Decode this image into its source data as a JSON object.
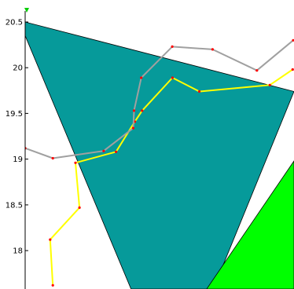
{
  "chart_data": {
    "type": "line",
    "title": "",
    "xlabel": "",
    "ylabel": "",
    "ylim": [
      17.58,
      20.62
    ],
    "xlim": [
      0,
      10
    ],
    "y_ticks": [
      {
        "value": 18,
        "label": "18"
      },
      {
        "value": 18.5,
        "label": "18.5"
      },
      {
        "value": 19,
        "label": "19"
      },
      {
        "value": 19.5,
        "label": "19.5"
      },
      {
        "value": 20,
        "label": "20"
      },
      {
        "value": 20.5,
        "label": "20.5"
      }
    ],
    "grid": false,
    "legend": "none",
    "areas": [
      {
        "name": "teal-region",
        "color": "#069a9a",
        "points": [
          [
            0,
            20.5
          ],
          [
            0,
            20.35
          ],
          [
            3.94,
            17.58
          ],
          [
            7.0,
            17.58
          ],
          [
            10,
            19.74
          ]
        ]
      },
      {
        "name": "green-region",
        "color": "#00ff00",
        "points": [
          [
            6.75,
            17.58
          ],
          [
            10,
            17.58
          ],
          [
            10,
            18.98
          ]
        ]
      }
    ],
    "series": [
      {
        "color": "#ffff00",
        "marker_color": "#ff0000",
        "points": [
          [
            1.03,
            17.62
          ],
          [
            0.93,
            18.12
          ],
          [
            2.02,
            18.47
          ],
          [
            1.87,
            18.96
          ],
          [
            3.38,
            19.08
          ],
          [
            4.08,
            19.41
          ],
          [
            4.35,
            19.53
          ],
          [
            5.48,
            19.89
          ],
          [
            6.48,
            19.74
          ],
          [
            9.1,
            19.81
          ],
          [
            9.95,
            19.98
          ]
        ]
      },
      {
        "color": "#a0a0a0",
        "marker_color": "#ff0000",
        "points": [
          [
            0,
            19.12
          ],
          [
            1.03,
            19.01
          ],
          [
            2.92,
            19.09
          ],
          [
            4.02,
            19.34
          ],
          [
            4.05,
            19.53
          ],
          [
            4.32,
            19.89
          ],
          [
            5.47,
            20.23
          ],
          [
            6.97,
            20.2
          ],
          [
            8.62,
            19.97
          ],
          [
            9.97,
            20.3
          ]
        ]
      }
    ]
  }
}
